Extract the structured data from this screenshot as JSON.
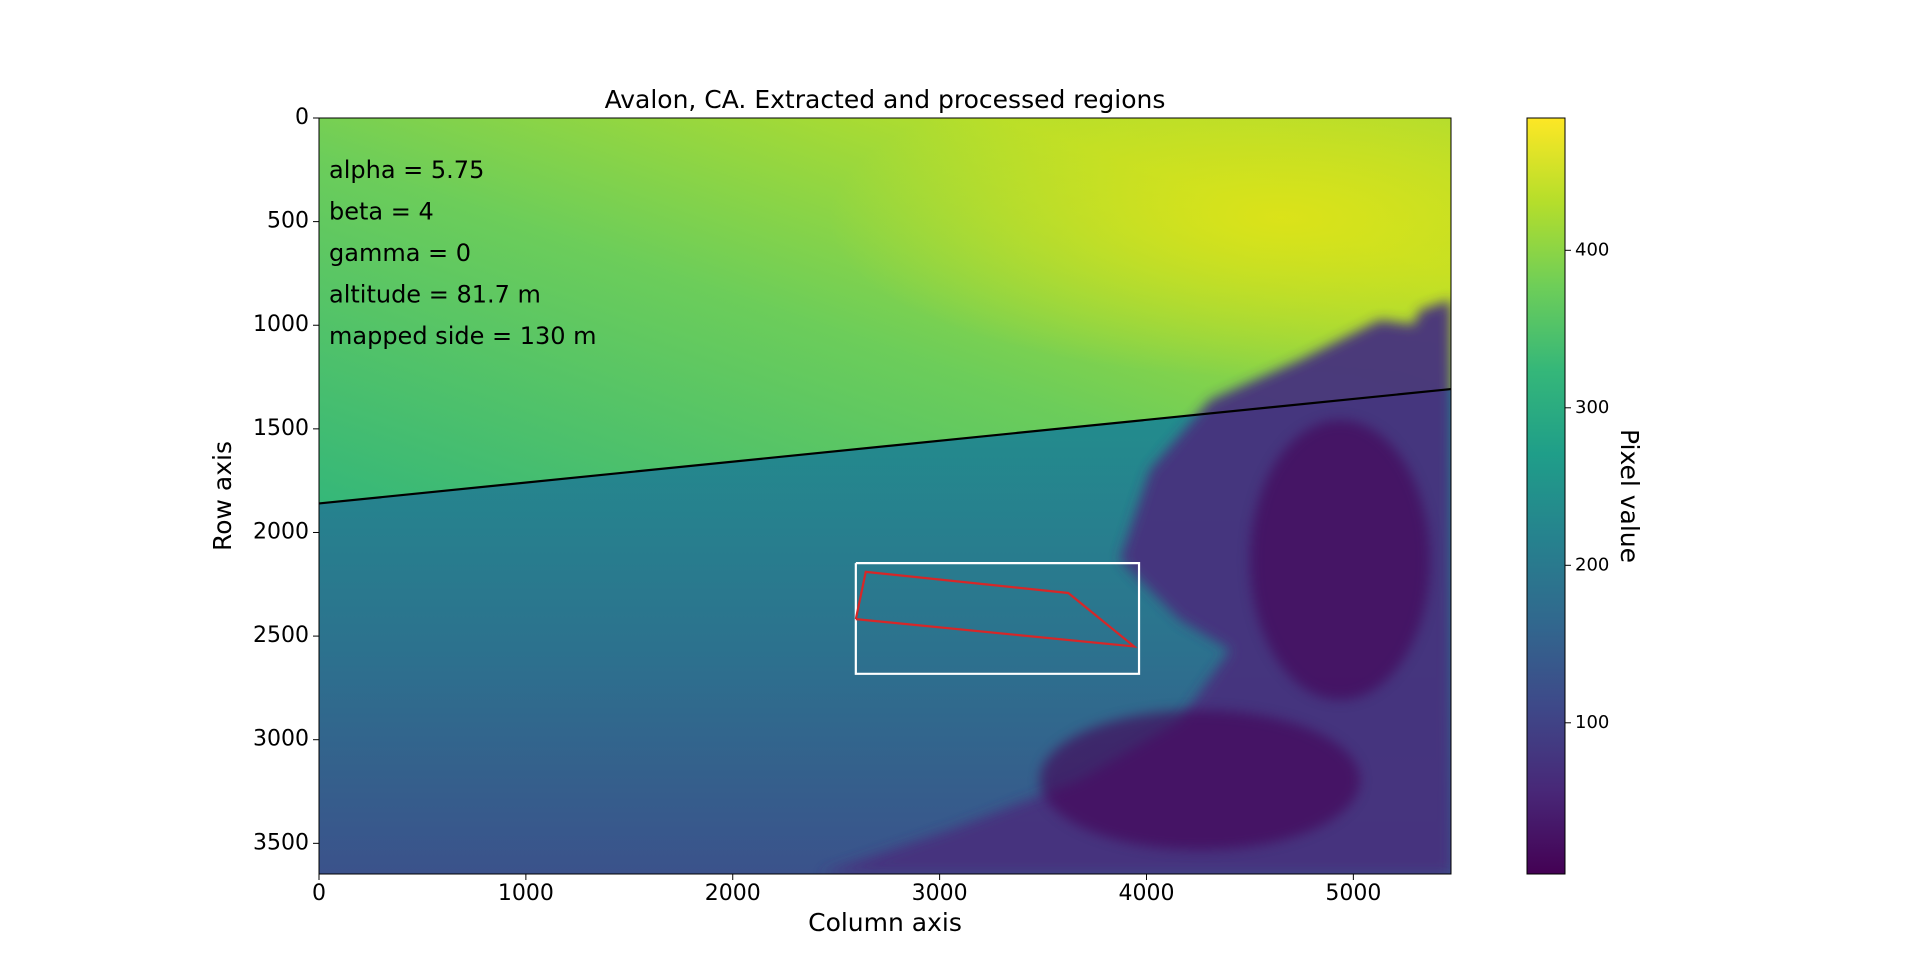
{
  "chart_data": {
    "type": "image",
    "title": "Avalon, CA. Extracted and processed regions",
    "xlabel": "Column axis",
    "ylabel": "Row axis",
    "xlim": [
      0,
      5472
    ],
    "ylim": [
      3648,
      0
    ],
    "xticks": [
      0,
      1000,
      2000,
      3000,
      4000,
      5000
    ],
    "yticks": [
      0,
      500,
      1000,
      1500,
      2000,
      2500,
      3000,
      3500
    ],
    "annotations": [
      "alpha = 5.75",
      "beta = 4",
      "gamma = 0",
      "altitude = 81.7 m",
      "mapped side = 130 m"
    ],
    "lines": [
      {
        "color": "#000000",
        "x": [
          0,
          5472
        ],
        "y": [
          1860,
          1308
        ]
      },
      {
        "color": "#ffffff",
        "x": [
          2595,
          3964,
          3964,
          2595,
          2595
        ],
        "y": [
          2148,
          2148,
          2682,
          2682,
          2148
        ]
      },
      {
        "color": "#d62728",
        "x": [
          2595,
          2643,
          3622,
          3940,
          2595
        ],
        "y": [
          2418,
          2190,
          2292,
          2550,
          2418
        ]
      }
    ],
    "colorbar": {
      "label": "Pixel value",
      "colormap": "viridis",
      "lim": [
        4,
        484
      ],
      "ticks": [
        100,
        200,
        300,
        400
      ]
    }
  }
}
